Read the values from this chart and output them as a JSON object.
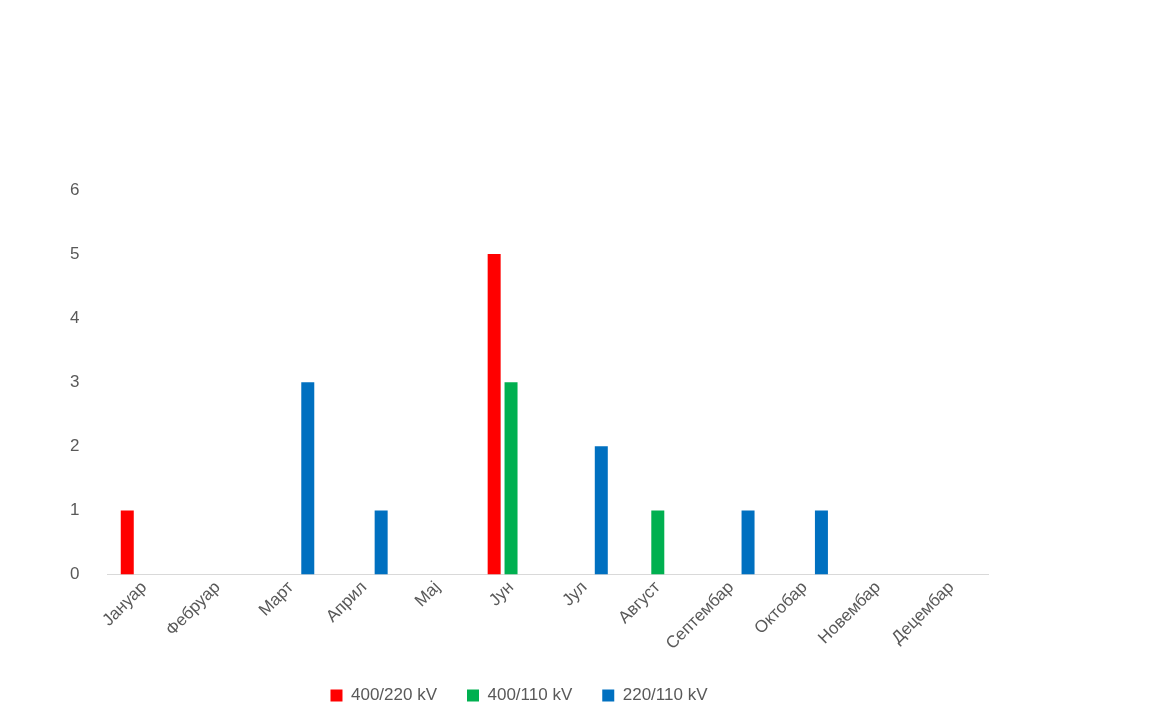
{
  "chart_data": {
    "type": "bar",
    "categories": [
      "Јануар",
      "Фебруар",
      "Март",
      "Април",
      "Мај",
      "Јун",
      "Јул",
      "Август",
      "Септембар",
      "Октобар",
      "Новембар",
      "Децембар"
    ],
    "series": [
      {
        "name": "400/220 kV",
        "color": "#ff0000",
        "values": [
          1,
          0,
          0,
          0,
          0,
          5,
          0,
          0,
          0,
          0,
          0,
          0
        ]
      },
      {
        "name": "400/110 kV",
        "color": "#00b050",
        "values": [
          0,
          0,
          0,
          0,
          0,
          3,
          0,
          1,
          0,
          0,
          0,
          0
        ]
      },
      {
        "name": "220/110 kV",
        "color": "#0070c0",
        "values": [
          0,
          0,
          3,
          1,
          0,
          0,
          2,
          0,
          1,
          1,
          0,
          0
        ]
      }
    ],
    "ylim": [
      0,
      6
    ],
    "yticks": [
      0,
      1,
      2,
      3,
      4,
      5,
      6
    ],
    "grid": false,
    "legend": "bottom"
  }
}
